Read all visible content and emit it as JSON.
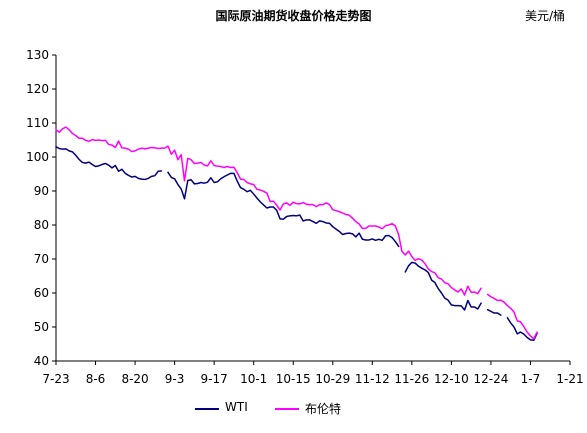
{
  "chart_data": {
    "type": "line",
    "title": "国际原油期货收盘价格走势图",
    "ylabel": "美元/桶",
    "xlabel": "",
    "ylim": [
      40,
      130
    ],
    "yticks": [
      40,
      50,
      60,
      70,
      80,
      90,
      100,
      110,
      120,
      130
    ],
    "xticks": [
      "7-23",
      "8-6",
      "8-20",
      "9-3",
      "9-17",
      "10-1",
      "10-15",
      "10-29",
      "11-12",
      "11-26",
      "12-10",
      "12-24",
      "1-7",
      "1-21"
    ],
    "grid": false,
    "legend_position": "bottom",
    "series": [
      {
        "name": "WTI",
        "color": "#000080",
        "values": [
          [
            0,
            103
          ],
          [
            1,
            102.5
          ],
          [
            2,
            102.3
          ],
          [
            3,
            102.4
          ],
          [
            4,
            101.8
          ],
          [
            5,
            101.5
          ],
          [
            6,
            100.5
          ],
          [
            7,
            99.3
          ],
          [
            8,
            98.4
          ],
          [
            9,
            98.2
          ],
          [
            10,
            98.5
          ],
          [
            11,
            97.8
          ],
          [
            12,
            97.2
          ],
          [
            13,
            97.4
          ],
          [
            14,
            97.8
          ],
          [
            15,
            98.1
          ],
          [
            16,
            97.6
          ],
          [
            17,
            96.8
          ],
          [
            18,
            97.5
          ],
          [
            19,
            95.8
          ],
          [
            20,
            96.4
          ],
          [
            21,
            95.2
          ],
          [
            22,
            94.6
          ],
          [
            23,
            94.1
          ],
          [
            24,
            94.3
          ],
          [
            25,
            93.7
          ],
          [
            26,
            93.5
          ],
          [
            27,
            93.4
          ],
          [
            28,
            93.7
          ],
          [
            29,
            94.3
          ],
          [
            30,
            94.5
          ],
          [
            31,
            95.8
          ],
          [
            32,
            95.9
          ],
          [
            null,
            null
          ],
          [
            34,
            95.5
          ],
          [
            35,
            94.0
          ],
          [
            36,
            93.6
          ],
          [
            37,
            91.9
          ],
          [
            38,
            90.6
          ],
          [
            39,
            87.7
          ],
          [
            40,
            93.1
          ],
          [
            41,
            93.3
          ],
          [
            42,
            92.1
          ],
          [
            43,
            92.2
          ],
          [
            44,
            92.5
          ],
          [
            45,
            92.3
          ],
          [
            46,
            92.6
          ],
          [
            47,
            93.9
          ],
          [
            48,
            92.5
          ],
          [
            49,
            92.7
          ],
          [
            50,
            93.6
          ],
          [
            51,
            94.2
          ],
          [
            52,
            94.7
          ],
          [
            53,
            95.2
          ],
          [
            54,
            95.2
          ],
          [
            55,
            92.9
          ],
          [
            56,
            91.0
          ],
          [
            57,
            90.5
          ],
          [
            58,
            89.8
          ],
          [
            59,
            90.2
          ],
          [
            60,
            89.1
          ],
          [
            61,
            87.9
          ],
          [
            62,
            86.8
          ],
          [
            63,
            85.9
          ],
          [
            64,
            85.0
          ],
          [
            65,
            85.3
          ],
          [
            66,
            85.3
          ],
          [
            67,
            84.3
          ],
          [
            68,
            81.8
          ],
          [
            69,
            81.7
          ],
          [
            70,
            82.5
          ],
          [
            71,
            82.7
          ],
          [
            72,
            82.8
          ],
          [
            73,
            82.7
          ],
          [
            74,
            82.9
          ],
          [
            75,
            81.2
          ],
          [
            76,
            81.5
          ],
          [
            77,
            81.5
          ],
          [
            78,
            81.0
          ],
          [
            79,
            80.5
          ],
          [
            80,
            81.2
          ],
          [
            81,
            81.0
          ],
          [
            82,
            80.6
          ],
          [
            83,
            80.5
          ],
          [
            84,
            79.5
          ],
          [
            85,
            78.8
          ],
          [
            86,
            78.1
          ],
          [
            87,
            77.2
          ],
          [
            88,
            77.5
          ],
          [
            89,
            77.6
          ],
          [
            90,
            77.4
          ],
          [
            91,
            76.5
          ],
          [
            92,
            77.6
          ],
          [
            93,
            75.8
          ],
          [
            94,
            75.6
          ],
          [
            95,
            75.6
          ],
          [
            96,
            75.9
          ],
          [
            97,
            75.5
          ],
          [
            98,
            75.8
          ],
          [
            99,
            75.5
          ],
          [
            100,
            76.8
          ],
          [
            101,
            76.9
          ],
          [
            102,
            76.3
          ],
          [
            103,
            75.1
          ],
          [
            104,
            73.7
          ],
          [
            null,
            null
          ],
          [
            106,
            66.2
          ],
          [
            107,
            68.0
          ],
          [
            108,
            69.0
          ],
          [
            109,
            68.8
          ],
          [
            110,
            67.9
          ],
          [
            111,
            67.3
          ],
          [
            112,
            66.8
          ],
          [
            113,
            66.0
          ],
          [
            114,
            63.8
          ],
          [
            115,
            63.1
          ],
          [
            116,
            61.3
          ],
          [
            117,
            60.0
          ],
          [
            118,
            58.5
          ],
          [
            119,
            57.9
          ],
          [
            120,
            56.5
          ],
          [
            121,
            56.3
          ],
          [
            122,
            56.3
          ],
          [
            123,
            56.2
          ],
          [
            124,
            55.0
          ],
          [
            125,
            57.8
          ],
          [
            126,
            55.9
          ],
          [
            127,
            55.9
          ],
          [
            128,
            55.3
          ],
          [
            129,
            57.0
          ],
          [
            null,
            null
          ],
          [
            131,
            55.1
          ],
          [
            132,
            54.6
          ],
          [
            133,
            54.1
          ],
          [
            134,
            54.1
          ],
          [
            135,
            53.5
          ],
          [
            null,
            null
          ],
          [
            137,
            52.7
          ],
          [
            138,
            51.2
          ],
          [
            139,
            50.0
          ],
          [
            140,
            48.0
          ],
          [
            141,
            48.5
          ],
          [
            142,
            47.9
          ],
          [
            143,
            46.9
          ],
          [
            144,
            46.2
          ],
          [
            145,
            46.1
          ],
          [
            146,
            48.1
          ]
        ]
      },
      {
        "name": "布伦特",
        "color": "#FF00FF",
        "values": [
          [
            0,
            108
          ],
          [
            1,
            107.3
          ],
          [
            2,
            108.3
          ],
          [
            3,
            108.8
          ],
          [
            4,
            108.0
          ],
          [
            5,
            106.9
          ],
          [
            6,
            106.3
          ],
          [
            7,
            105.5
          ],
          [
            8,
            105.5
          ],
          [
            9,
            104.9
          ],
          [
            10,
            104.6
          ],
          [
            11,
            105.1
          ],
          [
            12,
            104.9
          ],
          [
            13,
            105.0
          ],
          [
            14,
            104.8
          ],
          [
            15,
            104.9
          ],
          [
            16,
            103.7
          ],
          [
            17,
            103.5
          ],
          [
            18,
            102.8
          ],
          [
            19,
            104.7
          ],
          [
            20,
            102.7
          ],
          [
            21,
            102.6
          ],
          [
            22,
            102.3
          ],
          [
            23,
            101.6
          ],
          [
            24,
            101.8
          ],
          [
            25,
            102.3
          ],
          [
            26,
            102.6
          ],
          [
            27,
            102.4
          ],
          [
            28,
            102.6
          ],
          [
            29,
            102.8
          ],
          [
            30,
            102.7
          ],
          [
            31,
            102.5
          ],
          [
            32,
            102.6
          ],
          [
            33,
            102.6
          ],
          [
            34,
            103.2
          ],
          [
            35,
            100.8
          ],
          [
            36,
            102.0
          ],
          [
            37,
            99.2
          ],
          [
            38,
            100.7
          ],
          [
            39,
            93.0
          ],
          [
            40,
            99.6
          ],
          [
            41,
            99.2
          ],
          [
            42,
            98.1
          ],
          [
            43,
            98.2
          ],
          [
            44,
            98.4
          ],
          [
            45,
            97.6
          ],
          [
            46,
            97.4
          ],
          [
            47,
            98.9
          ],
          [
            48,
            97.5
          ],
          [
            49,
            97.3
          ],
          [
            50,
            97.2
          ],
          [
            51,
            96.9
          ],
          [
            52,
            97.2
          ],
          [
            53,
            96.9
          ],
          [
            54,
            97.0
          ],
          [
            55,
            95.4
          ],
          [
            56,
            93.5
          ],
          [
            57,
            93.4
          ],
          [
            58,
            92.5
          ],
          [
            59,
            92.1
          ],
          [
            60,
            91.9
          ],
          [
            61,
            90.5
          ],
          [
            62,
            90.3
          ],
          [
            63,
            89.9
          ],
          [
            64,
            89.4
          ],
          [
            65,
            86.9
          ],
          [
            66,
            87.0
          ],
          [
            67,
            85.8
          ],
          [
            68,
            84.4
          ],
          [
            69,
            86.2
          ],
          [
            70,
            86.5
          ],
          [
            71,
            85.8
          ],
          [
            72,
            86.7
          ],
          [
            73,
            86.3
          ],
          [
            74,
            86.2
          ],
          [
            75,
            86.6
          ],
          [
            76,
            86.1
          ],
          [
            77,
            86.0
          ],
          [
            78,
            86.0
          ],
          [
            79,
            85.4
          ],
          [
            80,
            86.0
          ],
          [
            81,
            86.0
          ],
          [
            82,
            86.5
          ],
          [
            83,
            86.0
          ],
          [
            84,
            84.5
          ],
          [
            85,
            84.2
          ],
          [
            86,
            83.9
          ],
          [
            87,
            83.5
          ],
          [
            88,
            83.1
          ],
          [
            89,
            82.9
          ],
          [
            90,
            82.0
          ],
          [
            91,
            81.0
          ],
          [
            92,
            80.3
          ],
          [
            93,
            79.0
          ],
          [
            94,
            79.0
          ],
          [
            95,
            79.7
          ],
          [
            96,
            79.7
          ],
          [
            97,
            79.7
          ],
          [
            98,
            79.4
          ],
          [
            99,
            78.9
          ],
          [
            100,
            79.8
          ],
          [
            101,
            80.0
          ],
          [
            102,
            80.4
          ],
          [
            103,
            79.7
          ],
          [
            104,
            77.1
          ],
          [
            105,
            72.2
          ],
          [
            106,
            71.2
          ],
          [
            107,
            72.3
          ],
          [
            108,
            70.7
          ],
          [
            109,
            69.6
          ],
          [
            110,
            70.1
          ],
          [
            111,
            69.7
          ],
          [
            112,
            68.6
          ],
          [
            113,
            67.1
          ],
          [
            114,
            66.3
          ],
          [
            115,
            65.9
          ],
          [
            116,
            64.5
          ],
          [
            117,
            64.1
          ],
          [
            118,
            63.0
          ],
          [
            119,
            62.7
          ],
          [
            120,
            61.6
          ],
          [
            121,
            60.9
          ],
          [
            122,
            60.3
          ],
          [
            123,
            61.2
          ],
          [
            124,
            59.4
          ],
          [
            125,
            62.0
          ],
          [
            126,
            60.2
          ],
          [
            127,
            60.3
          ],
          [
            128,
            59.8
          ],
          [
            129,
            61.4
          ],
          [
            null,
            null
          ],
          [
            131,
            59.6
          ],
          [
            132,
            58.9
          ],
          [
            133,
            58.4
          ],
          [
            134,
            57.8
          ],
          [
            135,
            57.9
          ],
          [
            136,
            57.3
          ],
          [
            137,
            56.3
          ],
          [
            138,
            55.5
          ],
          [
            139,
            54.4
          ],
          [
            140,
            51.8
          ],
          [
            141,
            51.5
          ],
          [
            142,
            50.1
          ],
          [
            143,
            48.5
          ],
          [
            144,
            47.4
          ],
          [
            145,
            46.5
          ],
          [
            146,
            48.5
          ]
        ]
      }
    ]
  }
}
